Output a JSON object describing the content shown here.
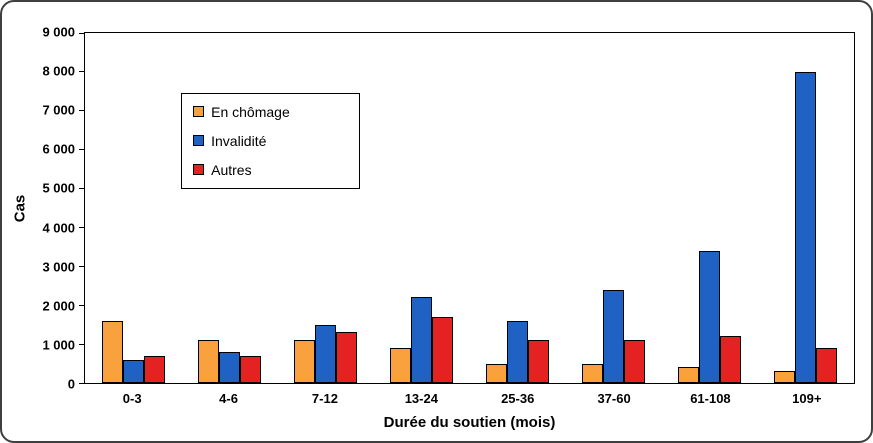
{
  "chart_data": {
    "type": "bar",
    "title": "",
    "xlabel": "Durée du soutien (mois)",
    "ylabel": "Cas",
    "categories": [
      "0-3",
      "4-6",
      "7-12",
      "13-24",
      "25-36",
      "37-60",
      "61-108",
      "109+"
    ],
    "series": [
      {
        "name": "En chômage",
        "color": "#F9A13C",
        "values": [
          1600,
          1100,
          1100,
          900,
          500,
          500,
          400,
          300
        ]
      },
      {
        "name": "Invalidité",
        "color": "#1F62C4",
        "values": [
          600,
          800,
          1500,
          2200,
          1600,
          2400,
          3400,
          8000
        ]
      },
      {
        "name": "Autres",
        "color": "#E32221",
        "values": [
          700,
          700,
          1300,
          1700,
          1100,
          1100,
          1200,
          900
        ]
      }
    ],
    "ylim": [
      0,
      9000
    ],
    "ytick_step": 1000,
    "ytick_labels": [
      "0",
      "1 000",
      "2 000",
      "3 000",
      "4 000",
      "5 000",
      "6 000",
      "7 000",
      "8 000",
      "9 000"
    ],
    "grid": false,
    "legend_position": "upper-left",
    "bar_outline_color": "#000000",
    "frame_border_color": "#3f3f3f"
  }
}
